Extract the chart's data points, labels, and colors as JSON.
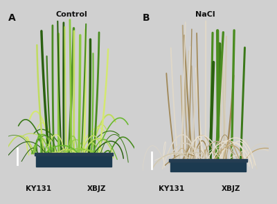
{
  "panel_A_label": "A",
  "panel_B_label": "B",
  "panel_A_title": "Control",
  "panel_B_title": "NaCl",
  "panel_A_xlabel_left": "KY131",
  "panel_A_xlabel_right": "XBJZ",
  "panel_B_xlabel_left": "KY131",
  "panel_B_xlabel_right": "XBJZ",
  "outer_bg": "#d0d0d0",
  "panel_bg": "#080808",
  "text_color": "#111111",
  "title_fontsize": 8,
  "xlabel_fontsize": 7.5,
  "panel_label_fontsize": 10,
  "fig_width": 4.0,
  "fig_height": 2.95,
  "dpi": 100,
  "scale_bar_color": "#ffffff",
  "pot_color": "#1c3a50",
  "pot_rim_color": "#253d52",
  "green_dark": "#2a6010",
  "green_mid": "#4a8c20",
  "green_light": "#8dc840",
  "green_pale": "#c0dc60",
  "yellow_green": "#d4e870",
  "dead_white": "#d8d0c0",
  "dead_tan": "#c0a878",
  "dead_brown": "#a08858",
  "dead_pale": "#e0d8c8"
}
